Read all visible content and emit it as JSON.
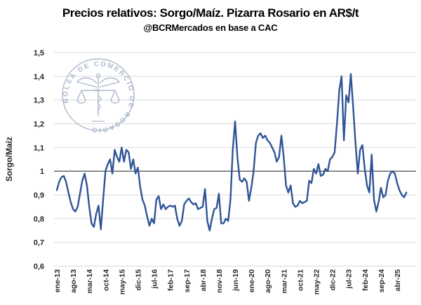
{
  "header": {
    "title": "Precios relativos: Sorgo/Maíz. Pizarra Rosario en AR$/t",
    "subtitle": "@BCRMercados en base a CAC"
  },
  "watermark": {
    "seal_text": "BOLSA DE COMERCIO DE ROSARIO",
    "color": "#9FADC4"
  },
  "colors": {
    "line": "#2F5597",
    "grid": "#D9D9D9",
    "reference_line": "#595959",
    "tick_text": "#262626"
  },
  "chart_data": {
    "type": "line",
    "title": "Precios relativos: Sorgo/Maíz. Pizarra Rosario en AR$/t",
    "subtitle": "@BCRMercados en base a CAC",
    "xlabel": "",
    "ylabel": "Sorgo/Maíz",
    "ylim": [
      0.6,
      1.5
    ],
    "grid": "horizontal",
    "legend": false,
    "reference_line": {
      "value": 1,
      "color": "#595959"
    },
    "y_ticks": [
      {
        "label": "1,5",
        "value": 1.5
      },
      {
        "label": "1,4",
        "value": 1.4
      },
      {
        "label": "1,3",
        "value": 1.3
      },
      {
        "label": "1,2",
        "value": 1.2
      },
      {
        "label": "1,1",
        "value": 1.1
      },
      {
        "label": "1",
        "value": 1.0
      },
      {
        "label": "0,9",
        "value": 0.9
      },
      {
        "label": "0,8",
        "value": 0.8
      },
      {
        "label": "0,7",
        "value": 0.7
      },
      {
        "label": "0,6",
        "value": 0.6
      }
    ],
    "x_tick_labels": [
      "ene-13",
      "ago-13",
      "mar-14",
      "oct-14",
      "may-15",
      "dic-15",
      "jul-16",
      "feb-17",
      "sep-17",
      "abr-18",
      "nov-18",
      "jun-19",
      "ene-20",
      "ago-20",
      "mar-21",
      "oct-21",
      "may-22",
      "dic-22",
      "jul-23",
      "feb-24",
      "sep-24",
      "abr-25"
    ],
    "x_tick_every_months": 7,
    "frequency": "monthly",
    "start_month": "ene-13",
    "end_month": "ago-25",
    "series": [
      {
        "name": "Sorgo/Maíz",
        "color": "#2F5597",
        "monthly_values": [
          0.92,
          0.955,
          0.975,
          0.98,
          0.955,
          0.91,
          0.87,
          0.84,
          0.83,
          0.85,
          0.905,
          0.96,
          0.99,
          0.94,
          0.85,
          0.78,
          0.765,
          0.82,
          0.855,
          0.755,
          0.88,
          1.0,
          1.03,
          1.05,
          0.99,
          1.09,
          1.06,
          1.04,
          1.1,
          1.04,
          1.09,
          1.08,
          1.01,
          1.05,
          0.99,
          1.015,
          0.935,
          0.88,
          0.855,
          0.81,
          0.77,
          0.8,
          0.78,
          0.88,
          0.895,
          0.84,
          0.86,
          0.84,
          0.85,
          0.855,
          0.85,
          0.855,
          0.8,
          0.77,
          0.79,
          0.86,
          0.875,
          0.885,
          0.87,
          0.86,
          0.865,
          0.84,
          0.845,
          0.85,
          0.925,
          0.79,
          0.75,
          0.8,
          0.84,
          0.845,
          0.905,
          0.78,
          0.78,
          0.8,
          0.79,
          0.88,
          1.09,
          1.21,
          1.06,
          0.965,
          0.955,
          0.97,
          0.955,
          0.875,
          0.93,
          1.0,
          1.12,
          1.15,
          1.16,
          1.14,
          1.15,
          1.13,
          1.12,
          1.1,
          1.08,
          1.04,
          1.06,
          1.15,
          1.06,
          0.94,
          0.91,
          0.94,
          0.865,
          0.85,
          0.855,
          0.875,
          0.865,
          0.87,
          0.875,
          0.96,
          0.95,
          1.01,
          0.99,
          1.03,
          0.98,
          0.985,
          1.01,
          1.0,
          1.05,
          1.06,
          1.08,
          1.2,
          1.34,
          1.4,
          1.13,
          1.32,
          1.29,
          1.41,
          1.27,
          1.12,
          0.99,
          1.09,
          1.11,
          1.01,
          0.94,
          0.91,
          1.07,
          0.88,
          0.83,
          0.87,
          0.93,
          0.89,
          0.9,
          0.96,
          0.99,
          1.0,
          0.99,
          0.95,
          0.92,
          0.9,
          0.89,
          0.91
        ]
      }
    ]
  }
}
